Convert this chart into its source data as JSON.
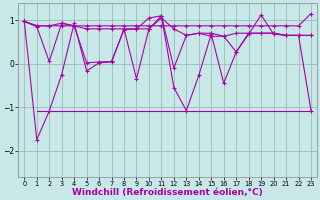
{
  "background_color": "#c8e8e8",
  "line_color": "#aa00aa",
  "grid_color": "#99bbbb",
  "xlabel": "Windchill (Refroidissement éolien,°C)",
  "xlabel_fontsize": 6.5,
  "tick_fontsize": 5.5,
  "xlim": [
    -0.5,
    23.5
  ],
  "ylim": [
    -2.6,
    1.4
  ],
  "yticks": [
    -2,
    -1,
    0,
    1
  ],
  "xticks": [
    0,
    1,
    2,
    3,
    4,
    5,
    6,
    7,
    8,
    9,
    10,
    11,
    12,
    13,
    14,
    15,
    16,
    17,
    18,
    19,
    20,
    21,
    22,
    23
  ],
  "series": [
    [
      0.97,
      0.87,
      0.87,
      0.87,
      0.87,
      0.87,
      0.87,
      0.87,
      0.87,
      0.87,
      0.87,
      0.87,
      0.87,
      0.87,
      0.87,
      0.87,
      0.87,
      0.87,
      0.87,
      0.87,
      0.87,
      0.87,
      0.87,
      1.15
    ],
    [
      0.97,
      0.87,
      0.87,
      0.93,
      0.87,
      0.8,
      0.8,
      0.8,
      0.8,
      0.8,
      0.8,
      1.05,
      0.8,
      0.65,
      0.7,
      0.7,
      0.63,
      0.7,
      0.7,
      0.7,
      0.7,
      0.65,
      0.65,
      0.65
    ],
    [
      0.97,
      0.85,
      0.05,
      0.93,
      0.87,
      0.02,
      0.04,
      0.05,
      0.78,
      0.8,
      1.05,
      1.1,
      -0.1,
      0.65,
      0.7,
      0.63,
      0.63,
      0.27,
      0.7,
      0.7,
      0.7,
      0.65,
      0.65,
      0.65
    ],
    [
      0.97,
      -1.75,
      -1.09,
      -0.25,
      0.93,
      -0.17,
      0.02,
      0.04,
      0.8,
      -0.35,
      0.8,
      1.1,
      -0.55,
      -1.08,
      -0.27,
      0.68,
      -0.45,
      0.27,
      0.68,
      1.12,
      0.68,
      0.65,
      0.65,
      -1.08
    ]
  ],
  "flat_series": [
    -1.08,
    -1.08,
    -1.08,
    -1.08,
    -1.08,
    -1.08,
    -1.08,
    -1.08,
    -1.08,
    -1.08,
    -1.08,
    -1.08,
    -1.08,
    -1.08,
    -1.08,
    -1.08,
    -1.08,
    -1.08,
    -1.08,
    -1.08,
    -1.08,
    -1.08,
    -1.08,
    -1.08
  ],
  "flat_start": 1
}
